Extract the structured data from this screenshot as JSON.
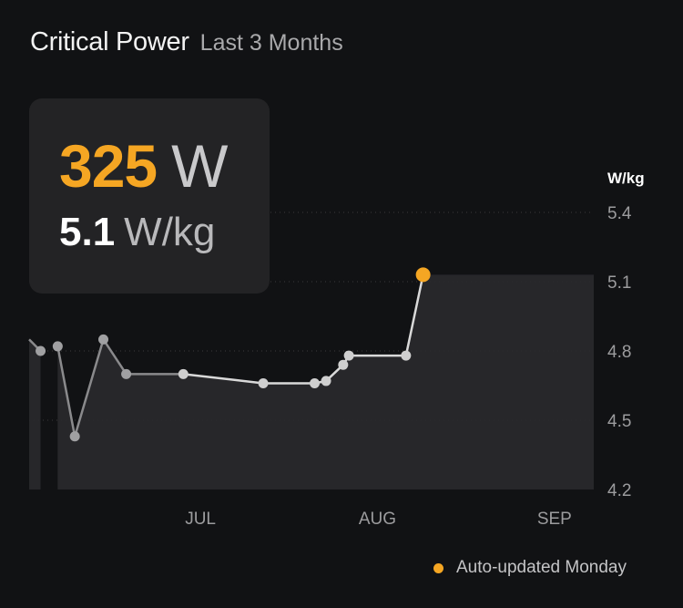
{
  "header": {
    "title": "Critical Power",
    "subtitle": "Last 3 Months"
  },
  "stat": {
    "power_value": "325",
    "power_unit": "W",
    "wkg_value": "5.1",
    "wkg_unit": "W/kg"
  },
  "legend": {
    "label": "Auto-updated Monday"
  },
  "colors": {
    "accent": "#f5a623",
    "line": "#d9d9d9",
    "line_faded": "#8a8a8c",
    "area": "#2a2a2c",
    "axis_text": "#9c9c9e"
  },
  "chart_data": {
    "type": "line",
    "title": "",
    "xlabel": "",
    "ylabel": "W/kg",
    "ylim": [
      4.2,
      5.4
    ],
    "y_ticks": [
      "5.4",
      "5.1",
      "4.8",
      "4.5",
      "4.2"
    ],
    "x_ticks": [
      "JUL",
      "AUG",
      "SEP"
    ],
    "grid": "dotted horizontal",
    "series": [
      {
        "x": [
          "Jun 03",
          "Jun 06",
          "Jun 09",
          "Jun 14",
          "Jun 18",
          "Jun 28",
          "Jul 12",
          "Jul 21",
          "Jul 23",
          "Jul 26",
          "Jul 27",
          "Aug 06",
          "Aug 09"
        ],
        "values": [
          4.8,
          4.82,
          4.43,
          4.85,
          4.7,
          4.7,
          4.66,
          4.66,
          4.67,
          4.74,
          4.78,
          4.78,
          5.13
        ]
      }
    ],
    "highlight": {
      "x": "Aug 09",
      "value": 5.13
    }
  }
}
